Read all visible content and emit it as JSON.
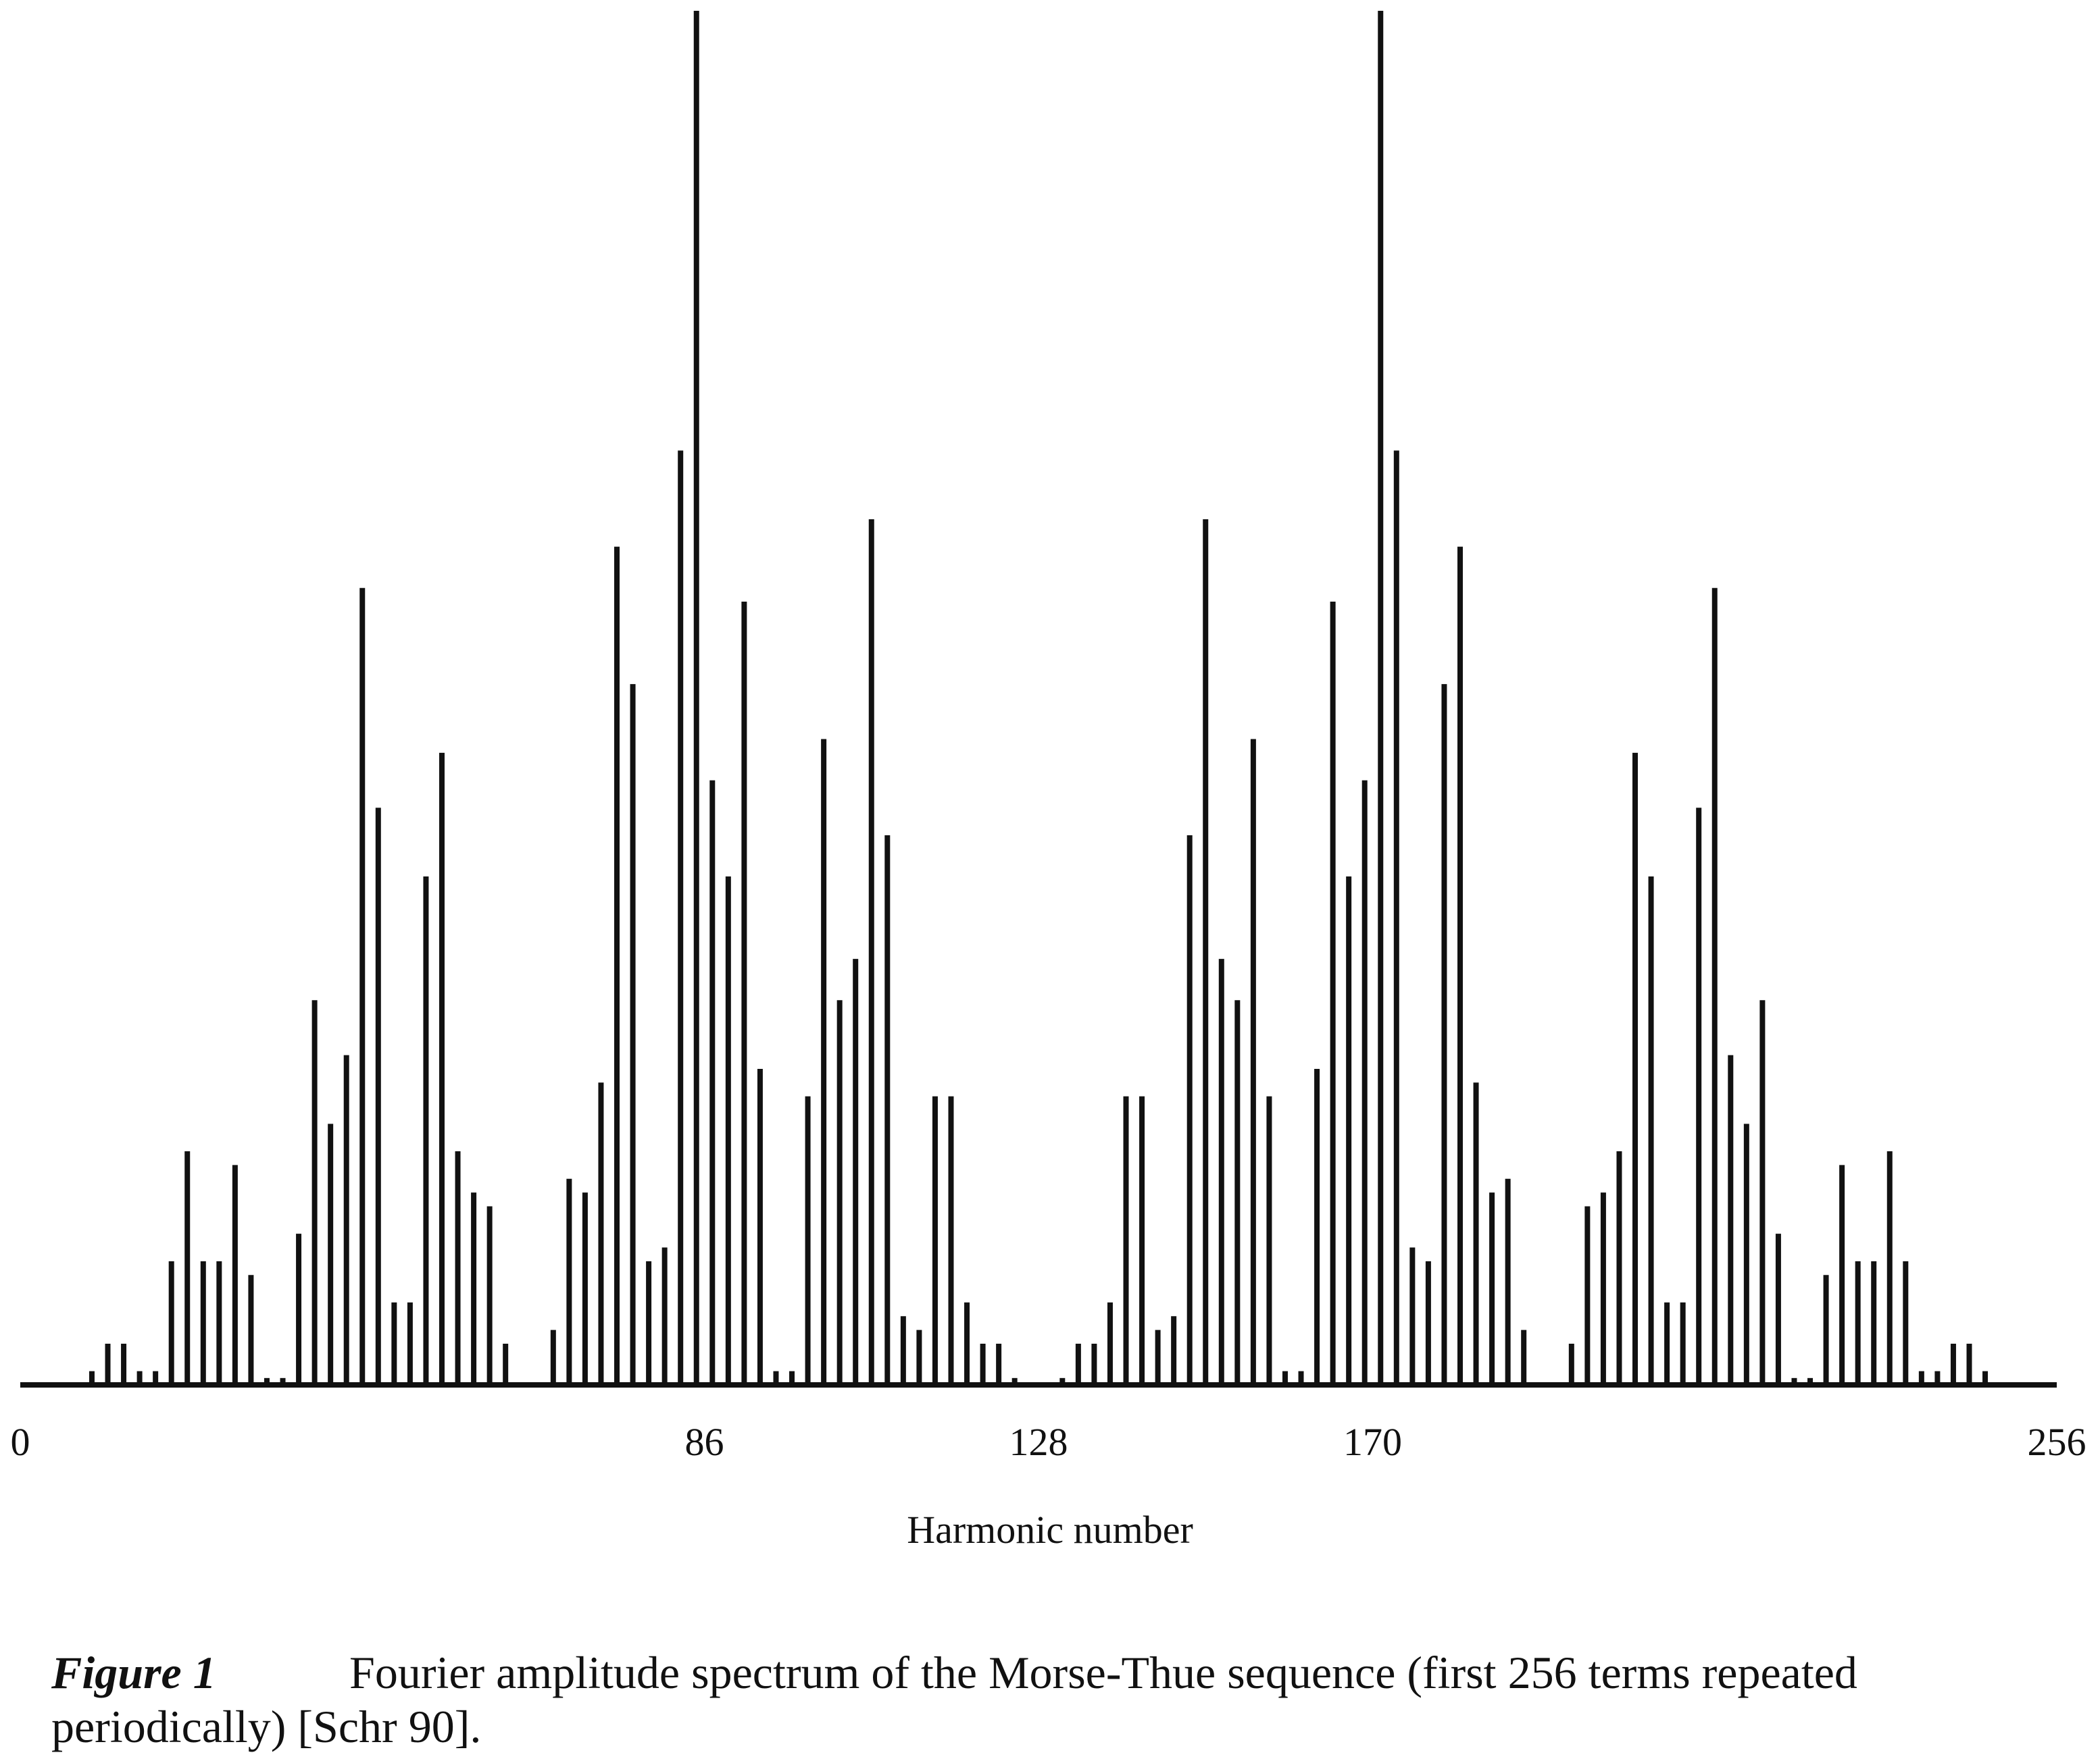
{
  "chart_data": {
    "type": "stem",
    "xlabel": "Harmonic number",
    "figure_label": "Figure 1",
    "caption": [
      "Fourier amplitude spectrum of the Morse-Thue sequence (first 256 terms repeated",
      "periodically) [Schr 90]."
    ],
    "color": "#111111",
    "xlim": [
      0,
      256
    ],
    "xticks": [
      0,
      86,
      128,
      170,
      256
    ],
    "ylim": [
      0,
      1
    ],
    "x": [
      1,
      3,
      5,
      7,
      9,
      11,
      13,
      15,
      17,
      19,
      21,
      23,
      25,
      27,
      29,
      31,
      33,
      35,
      37,
      39,
      41,
      43,
      45,
      47,
      49,
      51,
      53,
      55,
      57,
      59,
      61,
      63,
      65,
      67,
      69,
      71,
      73,
      75,
      77,
      79,
      81,
      83,
      85,
      87,
      89,
      91,
      93,
      95,
      97,
      99,
      101,
      103,
      105,
      107,
      109,
      111,
      113,
      115,
      117,
      119,
      121,
      123,
      125,
      127,
      129,
      131,
      133,
      135,
      137,
      139,
      141,
      143,
      145,
      147,
      149,
      151,
      153,
      155,
      157,
      159,
      161,
      163,
      165,
      167,
      169,
      171,
      173,
      175,
      177,
      179,
      181,
      183,
      185,
      187,
      189,
      191,
      193,
      195,
      197,
      199,
      201,
      203,
      205,
      207,
      209,
      211,
      213,
      215,
      217,
      219,
      221,
      223,
      225,
      227,
      229,
      231,
      233,
      235,
      237,
      239,
      241,
      243,
      245,
      247,
      249,
      251,
      253,
      255
    ],
    "values": [
      0,
      0,
      0,
      0,
      0.01,
      0.03,
      0.03,
      0.01,
      0.01,
      0.09,
      0.17,
      0.09,
      0.09,
      0.16,
      0.08,
      0.005,
      0.005,
      0.11,
      0.28,
      0.19,
      0.24,
      0.58,
      0.42,
      0.06,
      0.06,
      0.37,
      0.46,
      0.17,
      0.14,
      0.13,
      0.03,
      0,
      0,
      0.04,
      0.15,
      0.14,
      0.22,
      0.61,
      0.51,
      0.09,
      0.1,
      0.68,
      1,
      0.44,
      0.37,
      0.57,
      0.23,
      0.01,
      0.01,
      0.21,
      0.47,
      0.28,
      0.31,
      0.63,
      0.4,
      0.05,
      0.04,
      0.21,
      0.21,
      0.06,
      0.03,
      0.03,
      0.005,
      0,
      0,
      0.005,
      0.03,
      0.03,
      0.06,
      0.21,
      0.21,
      0.04,
      0.05,
      0.4,
      0.63,
      0.31,
      0.28,
      0.47,
      0.21,
      0.01,
      0.01,
      0.23,
      0.57,
      0.37,
      0.44,
      1,
      0.68,
      0.1,
      0.09,
      0.51,
      0.61,
      0.22,
      0.14,
      0.15,
      0.04,
      0,
      0,
      0.03,
      0.13,
      0.14,
      0.17,
      0.46,
      0.37,
      0.06,
      0.06,
      0.42,
      0.58,
      0.24,
      0.19,
      0.28,
      0.11,
      0.005,
      0.005,
      0.08,
      0.16,
      0.09,
      0.09,
      0.17,
      0.09,
      0.01,
      0.01,
      0.03,
      0.03,
      0.01,
      0,
      0,
      0,
      0
    ]
  }
}
